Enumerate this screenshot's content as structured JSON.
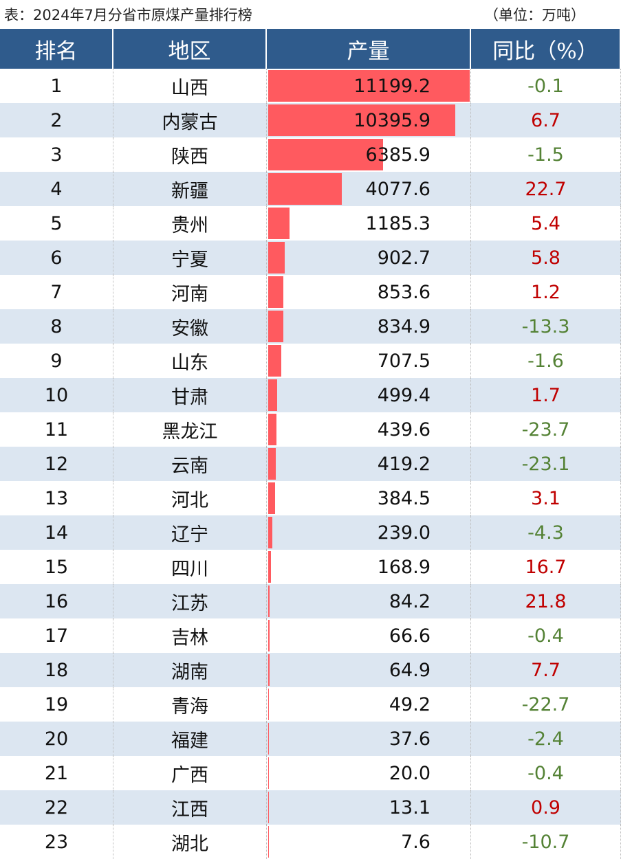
{
  "title": "表：2024年7月分省市原煤产量排行榜",
  "unit": "（单位：万吨）",
  "headers": [
    "排名",
    "地区",
    "产量",
    "同比（%）"
  ],
  "colors": {
    "header": "#2f5b8c",
    "bar": "#ff5a5f",
    "alt_row": "#dce6f1",
    "positive": "#c00000",
    "negative": "#548235"
  },
  "chart_data": {
    "type": "table",
    "columns": [
      "排名",
      "地区",
      "产量",
      "同比（%）"
    ],
    "rows": [
      [
        1,
        "山西",
        11199.2,
        -0.1
      ],
      [
        2,
        "内蒙古",
        10395.9,
        6.7
      ],
      [
        3,
        "陕西",
        6385.9,
        -1.5
      ],
      [
        4,
        "新疆",
        4077.6,
        22.7
      ],
      [
        5,
        "贵州",
        1185.3,
        5.4
      ],
      [
        6,
        "宁夏",
        902.7,
        5.8
      ],
      [
        7,
        "河南",
        853.6,
        1.2
      ],
      [
        8,
        "安徽",
        834.9,
        -13.3
      ],
      [
        9,
        "山东",
        707.5,
        -1.6
      ],
      [
        10,
        "甘肃",
        499.4,
        1.7
      ],
      [
        11,
        "黑龙江",
        439.6,
        -23.7
      ],
      [
        12,
        "云南",
        419.2,
        -23.1
      ],
      [
        13,
        "河北",
        384.5,
        3.1
      ],
      [
        14,
        "辽宁",
        239.0,
        -4.3
      ],
      [
        15,
        "四川",
        168.9,
        16.7
      ],
      [
        16,
        "江苏",
        84.2,
        21.8
      ],
      [
        17,
        "吉林",
        66.6,
        -0.4
      ],
      [
        18,
        "湖南",
        64.9,
        7.7
      ],
      [
        19,
        "青海",
        49.2,
        -22.7
      ],
      [
        20,
        "福建",
        37.6,
        -2.4
      ],
      [
        21,
        "广西",
        20.0,
        -0.4
      ],
      [
        22,
        "江西",
        13.1,
        0.9
      ],
      [
        23,
        "湖北",
        7.6,
        -10.7
      ]
    ]
  }
}
